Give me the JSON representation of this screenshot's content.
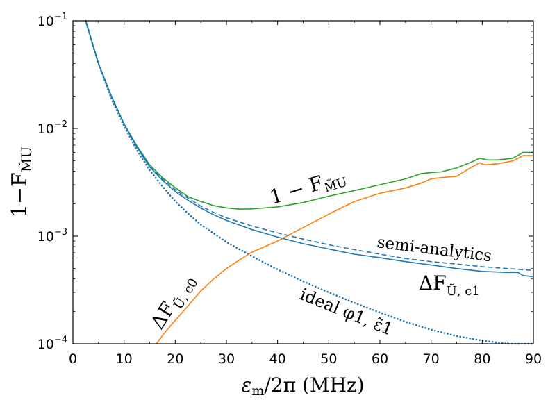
{
  "chart_data": {
    "type": "line",
    "title": "",
    "xlabel": "εm/2π (MHz)",
    "xlabel_parts": {
      "main": "ε",
      "sub": "m",
      "rest": "/2π (MHz)"
    },
    "ylabel": "1−F M̃U",
    "ylabel_parts": {
      "main": "1−F",
      "sub": "M̃U"
    },
    "xlim": [
      0,
      90
    ],
    "ylim": [
      0.0001,
      0.1
    ],
    "yscale": "log",
    "grid": false,
    "x_ticks": [
      "0",
      "10",
      "20",
      "30",
      "40",
      "50",
      "60",
      "70",
      "80",
      "90"
    ],
    "y_ticks": [
      {
        "base": "10",
        "exp": "−4",
        "value": 0.0001
      },
      {
        "base": "10",
        "exp": "−3",
        "value": 0.001
      },
      {
        "base": "10",
        "exp": "−2",
        "value": 0.01
      },
      {
        "base": "10",
        "exp": "−1",
        "value": 0.1
      }
    ],
    "series": [
      {
        "key": "total",
        "color": "#2ca02c",
        "style": "solid",
        "x": [
          2.5,
          5,
          7.5,
          10,
          12.5,
          15,
          17.5,
          20,
          22.5,
          25,
          27.5,
          30,
          32.5,
          35,
          40,
          45,
          50,
          55,
          60,
          65,
          68,
          70,
          72,
          75,
          78,
          79.5,
          81,
          83,
          86,
          88,
          90
        ],
        "y": [
          0.1,
          0.04,
          0.02,
          0.011,
          0.0069,
          0.0046,
          0.0035,
          0.00282,
          0.00232,
          0.0021,
          0.00192,
          0.00183,
          0.00178,
          0.00179,
          0.00187,
          0.00205,
          0.00235,
          0.00265,
          0.003,
          0.0034,
          0.0038,
          0.0039,
          0.00395,
          0.0043,
          0.0049,
          0.0053,
          0.0051,
          0.0051,
          0.0053,
          0.006,
          0.006
        ]
      },
      {
        "key": "delta_c1",
        "color": "#1f77b4",
        "style": "solid",
        "x": [
          2.5,
          5,
          7.5,
          10,
          12.5,
          15,
          17.5,
          20,
          22.5,
          25,
          27.5,
          30,
          35,
          40,
          45,
          50,
          55,
          60,
          65,
          70,
          75,
          80,
          85,
          87,
          88,
          90
        ],
        "y": [
          0.1,
          0.04,
          0.02,
          0.011,
          0.0067,
          0.0044,
          0.0033,
          0.0026,
          0.00215,
          0.00182,
          0.00158,
          0.0014,
          0.00115,
          0.00098,
          0.00085,
          0.00076,
          0.00068,
          0.00063,
          0.00058,
          0.00054,
          0.0005,
          0.00047,
          0.00046,
          0.00046,
          0.00043,
          0.00042
        ]
      },
      {
        "key": "semi",
        "color": "#1f77b4",
        "style": "dashed",
        "x": [
          2.5,
          5,
          7.5,
          10,
          12.5,
          15,
          17.5,
          20,
          22.5,
          25,
          27.5,
          30,
          35,
          40,
          45,
          50,
          55,
          60,
          65,
          70,
          75,
          80,
          85,
          90
        ],
        "y": [
          0.1,
          0.04,
          0.02,
          0.011,
          0.0068,
          0.0045,
          0.0034,
          0.0027,
          0.00225,
          0.0019,
          0.00166,
          0.00148,
          0.00124,
          0.00107,
          0.00094,
          0.00083,
          0.00075,
          0.00068,
          0.00062,
          0.00058,
          0.00055,
          0.00052,
          0.0005,
          0.00048
        ]
      },
      {
        "key": "ideal",
        "color": "#1f77b4",
        "style": "dotted",
        "x": [
          2.5,
          5,
          7.5,
          10,
          12.5,
          15,
          17.5,
          20,
          22.5,
          25,
          30,
          35,
          40,
          45,
          50,
          55,
          60,
          65,
          70,
          75,
          80,
          85,
          90
        ],
        "y": [
          0.1,
          0.04,
          0.019,
          0.0105,
          0.0063,
          0.0041,
          0.0029,
          0.0021,
          0.00162,
          0.00128,
          0.00088,
          0.00065,
          0.00049,
          0.00038,
          0.0003,
          0.00024,
          0.000195,
          0.00016,
          0.000135,
          0.000118,
          0.000107,
          0.0001,
          0.0001
        ]
      },
      {
        "key": "delta_c0",
        "color": "#ff7f0e",
        "style": "solid",
        "x": [
          16.3,
          18,
          20,
          22.5,
          25,
          27.5,
          30,
          32.5,
          35,
          40,
          45,
          50,
          55,
          60,
          65,
          68,
          70,
          72,
          75,
          78,
          79.5,
          80.5,
          83,
          86,
          88,
          90
        ],
        "y": [
          0.0001,
          0.000128,
          0.000165,
          0.000225,
          0.00031,
          0.0004,
          0.0005,
          0.0006,
          0.00071,
          0.0009,
          0.0012,
          0.0016,
          0.0021,
          0.0025,
          0.0028,
          0.0031,
          0.0034,
          0.0035,
          0.0036,
          0.0044,
          0.0048,
          0.0046,
          0.0047,
          0.005,
          0.0056,
          0.0056
        ]
      }
    ],
    "annotations": {
      "total": {
        "main": "1 − F",
        "sub": "M̃U"
      },
      "semi": "semi-analytics",
      "delta_c1": {
        "main": "ΔF",
        "sub": "Ũ, c1"
      },
      "delta_c0": {
        "main": "ΔF",
        "sub": "Ũ, c0"
      },
      "ideal": "ideal φ1, ε̃1"
    }
  }
}
